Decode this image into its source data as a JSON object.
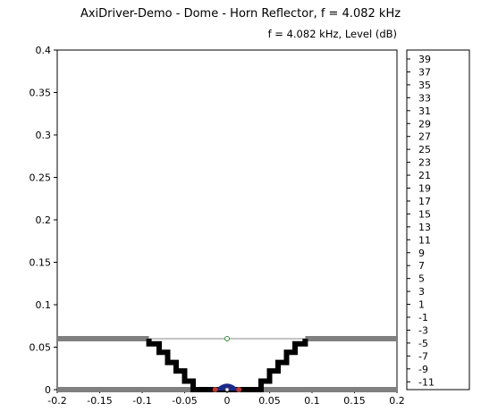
{
  "title": "AxiDriver-Demo - Dome - Horn Reflector,    f = 4.082 kHz",
  "subtitle": "f = 4.082 kHz, Level  (dB)",
  "chart_data": {
    "type": "diagram",
    "x_ticks": [
      "-0.2",
      "-0.15",
      "-0.1",
      "-0.05",
      "0",
      "0.05",
      "0.1",
      "0.15",
      "0.2"
    ],
    "y_ticks": [
      "0",
      "0.05",
      "0.1",
      "0.15",
      "0.2",
      "0.25",
      "0.3",
      "0.35",
      "0.4"
    ],
    "xlim": [
      -0.2,
      0.2
    ],
    "ylim": [
      0,
      0.4
    ],
    "colorbar_ticks": [
      "39",
      "37",
      "35",
      "33",
      "31",
      "29",
      "27",
      "25",
      "23",
      "21",
      "19",
      "17",
      "15",
      "13",
      "11",
      "9",
      "7",
      "5",
      "3",
      "1",
      "-1",
      "-3",
      "-5",
      "-7",
      "-9",
      "-11"
    ],
    "horn_profile_right": [
      [
        0.0,
        0.0
      ],
      [
        0.04,
        0.0
      ],
      [
        0.04,
        0.01
      ],
      [
        0.05,
        0.01
      ],
      [
        0.05,
        0.022
      ],
      [
        0.06,
        0.022
      ],
      [
        0.06,
        0.032
      ],
      [
        0.07,
        0.032
      ],
      [
        0.07,
        0.044
      ],
      [
        0.08,
        0.044
      ],
      [
        0.08,
        0.054
      ],
      [
        0.092,
        0.054
      ],
      [
        0.092,
        0.06
      ]
    ],
    "baffle_y": [
      0.0,
      0.06
    ],
    "colors": {
      "profile": "#000000",
      "baffle": "#808080",
      "dome": "#1a2a8a",
      "surround": "#c0392b",
      "marker": "#2e8b2e"
    }
  }
}
